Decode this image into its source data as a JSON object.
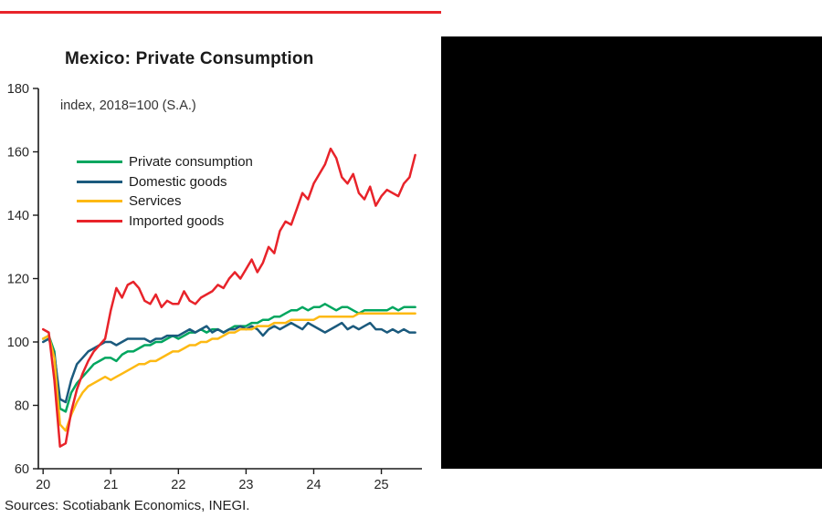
{
  "accent": {
    "top_rule_color": "#e8232a"
  },
  "right_block": {
    "color": "#000000"
  },
  "footer": {
    "source": "Sources: Scotiabank Economics, INEGI."
  },
  "chart_data": {
    "type": "line",
    "title": "Mexico: Private Consumption",
    "subtitle": "index, 2018=100 (S.A.)",
    "xlabel": "",
    "ylabel": "",
    "x_range": [
      2019.93,
      2025.6
    ],
    "y_range": [
      60,
      180
    ],
    "ylim": [
      60,
      180
    ],
    "y_ticks": [
      60,
      80,
      100,
      120,
      140,
      160,
      180
    ],
    "x_ticks": [
      2020,
      2021,
      2022,
      2023,
      2024,
      2025
    ],
    "x_tick_labels": [
      "20",
      "21",
      "22",
      "23",
      "24",
      "25"
    ],
    "frequency": "monthly",
    "x_start_year": 2020,
    "grid": false,
    "legend_position": "upper-left-inside",
    "axis_color": "#1a1a1a",
    "tick_label_color": "#262626",
    "series": [
      {
        "name": "Private consumption",
        "color": "#00a65f",
        "values": [
          101,
          102,
          97,
          79,
          78,
          84,
          87,
          89,
          91,
          93,
          94,
          95,
          95,
          94,
          96,
          97,
          97,
          98,
          99,
          99,
          100,
          100,
          101,
          102,
          101,
          102,
          103,
          103,
          104,
          103,
          104,
          104,
          103,
          104,
          105,
          105,
          105,
          106,
          106,
          107,
          107,
          108,
          108,
          109,
          110,
          110,
          111,
          110,
          111,
          111,
          112,
          111,
          110,
          111,
          111,
          110,
          109,
          110,
          110,
          110,
          110,
          110,
          111,
          110,
          111,
          111,
          111
        ]
      },
      {
        "name": "Domestic goods",
        "color": "#1b5a7d",
        "values": [
          100,
          101,
          96,
          82,
          81,
          88,
          93,
          95,
          97,
          98,
          99,
          100,
          100,
          99,
          100,
          101,
          101,
          101,
          101,
          100,
          101,
          101,
          102,
          102,
          102,
          103,
          104,
          103,
          104,
          105,
          103,
          104,
          103,
          104,
          104,
          105,
          104,
          105,
          104,
          102,
          104,
          105,
          104,
          105,
          106,
          105,
          104,
          106,
          105,
          104,
          103,
          104,
          105,
          106,
          104,
          105,
          104,
          105,
          106,
          104,
          104,
          103,
          104,
          103,
          104,
          103,
          103
        ]
      },
      {
        "name": "Services",
        "color": "#fdb913",
        "values": [
          101,
          102,
          95,
          74,
          72,
          77,
          81,
          84,
          86,
          87,
          88,
          89,
          88,
          89,
          90,
          91,
          92,
          93,
          93,
          94,
          94,
          95,
          96,
          97,
          97,
          98,
          99,
          99,
          100,
          100,
          101,
          101,
          102,
          103,
          103,
          104,
          104,
          104,
          105,
          105,
          105,
          106,
          106,
          106,
          107,
          107,
          107,
          107,
          107,
          108,
          108,
          108,
          108,
          108,
          108,
          108,
          109,
          109,
          109,
          109,
          109,
          109,
          109,
          109,
          109,
          109,
          109
        ]
      },
      {
        "name": "Imported goods",
        "color": "#e8232a",
        "values": [
          104,
          103,
          88,
          67,
          68,
          78,
          85,
          90,
          94,
          97,
          99,
          101,
          110,
          117,
          114,
          118,
          119,
          117,
          113,
          112,
          115,
          111,
          113,
          112,
          112,
          116,
          113,
          112,
          114,
          115,
          116,
          118,
          117,
          120,
          122,
          120,
          123,
          126,
          122,
          125,
          130,
          128,
          135,
          138,
          137,
          142,
          147,
          145,
          150,
          153,
          156,
          161,
          158,
          152,
          150,
          153,
          147,
          145,
          149,
          143,
          146,
          148,
          147,
          146,
          150,
          152,
          159
        ]
      }
    ]
  }
}
